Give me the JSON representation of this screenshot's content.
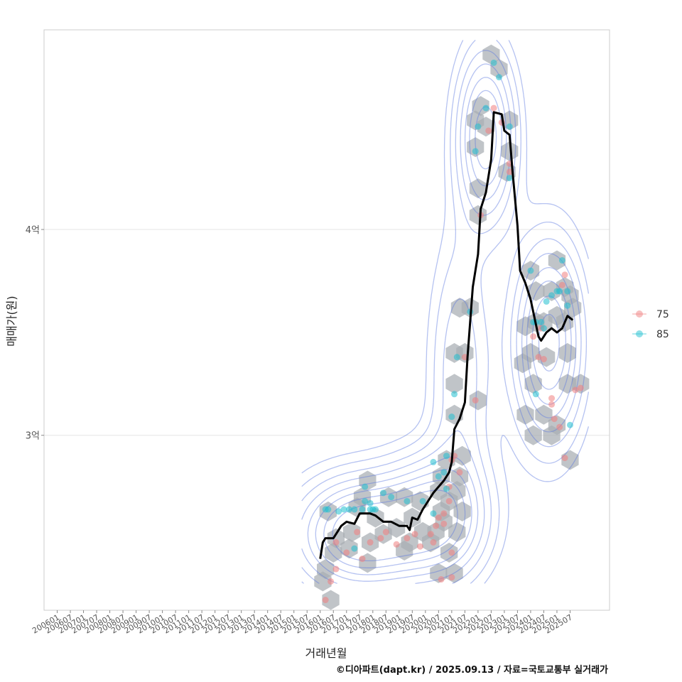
{
  "chart_data": {
    "type": "scatter",
    "xlabel": "거래년월",
    "ylabel": "매매가(원)",
    "caption": "©디아파트(dapt.kr) / 2025.09.13 / 자료=국토교통부 실거래가",
    "x_ticks": [
      "200601",
      "200607",
      "200701",
      "200707",
      "200801",
      "200807",
      "200901",
      "200907",
      "201001",
      "201007",
      "201101",
      "201107",
      "201201",
      "201207",
      "201301",
      "201307",
      "201401",
      "201407",
      "201501",
      "201507",
      "201601",
      "201607",
      "201701",
      "201707",
      "201801",
      "201807",
      "201901",
      "201907",
      "202001",
      "202007",
      "202101",
      "202107",
      "202201",
      "202207",
      "202301",
      "202307",
      "202401",
      "202407",
      "202501",
      "202507"
    ],
    "y_ticks": [
      {
        "value": 3.0,
        "label": "3억"
      },
      {
        "value": 4.0,
        "label": "4억"
      }
    ],
    "xlim": [
      2005.5,
      2027.0
    ],
    "ylim": [
      2.15,
      4.97
    ],
    "legend": {
      "position": "right",
      "entries": [
        {
          "name": "75",
          "color": "#f08080"
        },
        {
          "name": "85",
          "color": "#20c0d0"
        }
      ]
    },
    "colors": {
      "trend": "#000000",
      "hex": "#a8adb3",
      "contour": "#5a78e0",
      "grid": "#e6e6e6",
      "border": "#cccccc"
    },
    "hexbins": [
      [
        2016.1,
        2.29
      ],
      [
        2016.2,
        2.35
      ],
      [
        2016.4,
        2.2
      ],
      [
        2016.5,
        2.43
      ],
      [
        2016.6,
        2.5
      ],
      [
        2016.3,
        2.63
      ],
      [
        2017.1,
        2.45
      ],
      [
        2017.2,
        2.53
      ],
      [
        2017.4,
        2.65
      ],
      [
        2017.6,
        2.7
      ],
      [
        2017.8,
        2.78
      ],
      [
        2017.8,
        2.38
      ],
      [
        2017.9,
        2.48
      ],
      [
        2018.1,
        2.6
      ],
      [
        2018.4,
        2.52
      ],
      [
        2018.6,
        2.7
      ],
      [
        2018.9,
        2.55
      ],
      [
        2019.2,
        2.7
      ],
      [
        2019.2,
        2.44
      ],
      [
        2019.4,
        2.48
      ],
      [
        2019.5,
        2.6
      ],
      [
        2019.8,
        2.68
      ],
      [
        2019.9,
        2.53
      ],
      [
        2020.2,
        2.48
      ],
      [
        2020.4,
        2.53
      ],
      [
        2020.5,
        2.73
      ],
      [
        2020.5,
        2.33
      ],
      [
        2020.6,
        2.8
      ],
      [
        2020.6,
        2.63
      ],
      [
        2020.7,
        2.58
      ],
      [
        2020.8,
        2.88
      ],
      [
        2020.9,
        2.68
      ],
      [
        2020.9,
        2.43
      ],
      [
        2021.1,
        2.33
      ],
      [
        2021.2,
        2.53
      ],
      [
        2021.2,
        2.73
      ],
      [
        2021.3,
        2.8
      ],
      [
        2021.4,
        2.9
      ],
      [
        2021.4,
        2.63
      ],
      [
        2021.1,
        3.1
      ],
      [
        2021.1,
        3.25
      ],
      [
        2021.1,
        3.4
      ],
      [
        2021.5,
        3.4
      ],
      [
        2021.3,
        3.62
      ],
      [
        2021.7,
        3.62
      ],
      [
        2022.0,
        3.17
      ],
      [
        2022.0,
        4.07
      ],
      [
        2022.0,
        4.2
      ],
      [
        2021.9,
        4.4
      ],
      [
        2021.9,
        4.53
      ],
      [
        2022.1,
        4.6
      ],
      [
        2022.3,
        4.5
      ],
      [
        2022.5,
        4.85
      ],
      [
        2022.8,
        4.78
      ],
      [
        2023.1,
        4.28
      ],
      [
        2023.2,
        4.38
      ],
      [
        2023.2,
        4.53
      ],
      [
        2024.0,
        3.8
      ],
      [
        2024.0,
        3.4
      ],
      [
        2024.1,
        3.25
      ],
      [
        2024.1,
        3.0
      ],
      [
        2024.2,
        3.55
      ],
      [
        2024.2,
        3.7
      ],
      [
        2024.5,
        3.55
      ],
      [
        2024.5,
        3.1
      ],
      [
        2024.6,
        3.38
      ],
      [
        2024.8,
        3.7
      ],
      [
        2024.8,
        3.0
      ],
      [
        2025.0,
        3.58
      ],
      [
        2025.0,
        3.85
      ],
      [
        2025.0,
        3.05
      ],
      [
        2025.3,
        3.72
      ],
      [
        2025.3,
        3.55
      ],
      [
        2025.4,
        3.4
      ],
      [
        2025.4,
        3.25
      ],
      [
        2025.5,
        3.68
      ],
      [
        2025.6,
        3.62
      ],
      [
        2025.5,
        2.88
      ],
      [
        2025.9,
        3.25
      ],
      [
        2023.8,
        3.53
      ],
      [
        2023.7,
        3.35
      ],
      [
        2023.8,
        3.1
      ]
    ],
    "series": [
      {
        "name": "75",
        "points": [
          [
            2016.2,
            2.2
          ],
          [
            2016.4,
            2.29
          ],
          [
            2016.6,
            2.35
          ],
          [
            2016.6,
            2.48
          ],
          [
            2017.0,
            2.43
          ],
          [
            2017.4,
            2.53
          ],
          [
            2017.6,
            2.4
          ],
          [
            2017.9,
            2.48
          ],
          [
            2018.3,
            2.5
          ],
          [
            2018.5,
            2.53
          ],
          [
            2018.9,
            2.47
          ],
          [
            2019.3,
            2.5
          ],
          [
            2019.6,
            2.52
          ],
          [
            2019.8,
            2.46
          ],
          [
            2020.2,
            2.52
          ],
          [
            2020.3,
            2.48
          ],
          [
            2020.4,
            2.56
          ],
          [
            2020.5,
            2.6
          ],
          [
            2020.7,
            2.57
          ],
          [
            2020.7,
            2.62
          ],
          [
            2020.9,
            2.68
          ],
          [
            2020.9,
            2.75
          ],
          [
            2021.0,
            2.88
          ],
          [
            2021.1,
            2.9
          ],
          [
            2020.6,
            2.3
          ],
          [
            2021.0,
            2.31
          ],
          [
            2021.0,
            2.43
          ],
          [
            2021.3,
            2.82
          ],
          [
            2021.5,
            3.38
          ],
          [
            2021.9,
            3.17
          ],
          [
            2022.1,
            4.07
          ],
          [
            2022.4,
            4.48
          ],
          [
            2022.6,
            4.59
          ],
          [
            2022.9,
            4.52
          ],
          [
            2023.2,
            4.28
          ],
          [
            2023.2,
            4.32
          ],
          [
            2024.1,
            3.48
          ],
          [
            2024.3,
            3.38
          ],
          [
            2024.5,
            3.37
          ],
          [
            2024.8,
            3.18
          ],
          [
            2025.1,
            3.04
          ],
          [
            2024.9,
            3.08
          ],
          [
            2025.2,
            3.73
          ],
          [
            2025.3,
            3.78
          ],
          [
            2025.7,
            3.22
          ],
          [
            2025.9,
            3.23
          ],
          [
            2025.3,
            2.89
          ],
          [
            2024.8,
            3.15
          ],
          [
            2024.4,
            3.52
          ]
        ]
      },
      {
        "name": "85",
        "points": [
          [
            2016.2,
            2.64
          ],
          [
            2016.3,
            2.64
          ],
          [
            2016.7,
            2.63
          ],
          [
            2016.9,
            2.64
          ],
          [
            2017.1,
            2.64
          ],
          [
            2017.3,
            2.64
          ],
          [
            2017.6,
            2.64
          ],
          [
            2017.7,
            2.68
          ],
          [
            2017.9,
            2.64
          ],
          [
            2017.9,
            2.67
          ],
          [
            2018.0,
            2.64
          ],
          [
            2018.1,
            2.64
          ],
          [
            2017.3,
            2.45
          ],
          [
            2017.7,
            2.75
          ],
          [
            2018.4,
            2.72
          ],
          [
            2018.7,
            2.7
          ],
          [
            2019.3,
            2.68
          ],
          [
            2019.9,
            2.68
          ],
          [
            2020.3,
            2.87
          ],
          [
            2020.5,
            2.8
          ],
          [
            2020.7,
            2.82
          ],
          [
            2020.8,
            2.9
          ],
          [
            2020.8,
            2.74
          ],
          [
            2020.3,
            2.62
          ],
          [
            2021.0,
            3.09
          ],
          [
            2021.1,
            3.2
          ],
          [
            2021.2,
            3.38
          ],
          [
            2021.7,
            3.6
          ],
          [
            2021.9,
            4.38
          ],
          [
            2022.0,
            4.5
          ],
          [
            2022.3,
            4.59
          ],
          [
            2022.6,
            4.81
          ],
          [
            2022.8,
            4.74
          ],
          [
            2023.2,
            4.5
          ],
          [
            2023.2,
            4.25
          ],
          [
            2024.0,
            3.8
          ],
          [
            2024.1,
            3.55
          ],
          [
            2024.2,
            3.55
          ],
          [
            2024.4,
            3.55
          ],
          [
            2024.5,
            3.52
          ],
          [
            2024.2,
            3.2
          ],
          [
            2024.6,
            3.65
          ],
          [
            2024.8,
            3.68
          ],
          [
            2025.0,
            3.7
          ],
          [
            2025.1,
            3.7
          ],
          [
            2025.2,
            3.85
          ],
          [
            2025.4,
            3.7
          ],
          [
            2025.4,
            3.63
          ],
          [
            2025.5,
            3.05
          ]
        ]
      },
      {
        "name": "trend",
        "points": [
          [
            2016.0,
            2.4
          ],
          [
            2016.1,
            2.48
          ],
          [
            2016.2,
            2.5
          ],
          [
            2016.5,
            2.5
          ],
          [
            2016.8,
            2.56
          ],
          [
            2017.0,
            2.58
          ],
          [
            2017.3,
            2.57
          ],
          [
            2017.5,
            2.62
          ],
          [
            2017.9,
            2.62
          ],
          [
            2018.1,
            2.61
          ],
          [
            2018.4,
            2.58
          ],
          [
            2018.7,
            2.58
          ],
          [
            2019.0,
            2.56
          ],
          [
            2019.3,
            2.56
          ],
          [
            2019.4,
            2.54
          ],
          [
            2019.5,
            2.6
          ],
          [
            2019.7,
            2.59
          ],
          [
            2019.9,
            2.64
          ],
          [
            2020.1,
            2.68
          ],
          [
            2020.3,
            2.72
          ],
          [
            2020.5,
            2.75
          ],
          [
            2020.7,
            2.78
          ],
          [
            2020.9,
            2.82
          ],
          [
            2021.0,
            2.87
          ],
          [
            2021.1,
            3.03
          ],
          [
            2021.3,
            3.08
          ],
          [
            2021.5,
            3.16
          ],
          [
            2021.6,
            3.38
          ],
          [
            2021.8,
            3.72
          ],
          [
            2022.0,
            3.88
          ],
          [
            2022.1,
            4.1
          ],
          [
            2022.3,
            4.18
          ],
          [
            2022.5,
            4.34
          ],
          [
            2022.6,
            4.57
          ],
          [
            2022.9,
            4.56
          ],
          [
            2023.0,
            4.48
          ],
          [
            2023.2,
            4.46
          ],
          [
            2023.3,
            4.3
          ],
          [
            2023.5,
            4.02
          ],
          [
            2023.6,
            3.8
          ],
          [
            2023.8,
            3.74
          ],
          [
            2023.9,
            3.7
          ],
          [
            2024.0,
            3.66
          ],
          [
            2024.1,
            3.6
          ],
          [
            2024.3,
            3.48
          ],
          [
            2024.4,
            3.46
          ],
          [
            2024.6,
            3.5
          ],
          [
            2024.8,
            3.52
          ],
          [
            2025.0,
            3.5
          ],
          [
            2025.2,
            3.52
          ],
          [
            2025.3,
            3.55
          ],
          [
            2025.4,
            3.58
          ],
          [
            2025.6,
            3.56
          ]
        ]
      }
    ],
    "density_centers": [
      {
        "x": 2017.5,
        "y": 2.52,
        "sx": 1.6,
        "sy": 0.18,
        "w": 1.0
      },
      {
        "x": 2020.4,
        "y": 2.6,
        "sx": 1.3,
        "sy": 0.2,
        "w": 0.8
      },
      {
        "x": 2024.7,
        "y": 3.45,
        "sx": 0.9,
        "sy": 0.32,
        "w": 0.9
      },
      {
        "x": 2022.3,
        "y": 4.45,
        "sx": 0.75,
        "sy": 0.28,
        "w": 0.8
      },
      {
        "x": 2021.3,
        "y": 3.3,
        "sx": 0.8,
        "sy": 0.45,
        "w": 0.35
      }
    ],
    "contour_levels": [
      0.1,
      0.17,
      0.26,
      0.36,
      0.47,
      0.58,
      0.7,
      0.82
    ]
  }
}
